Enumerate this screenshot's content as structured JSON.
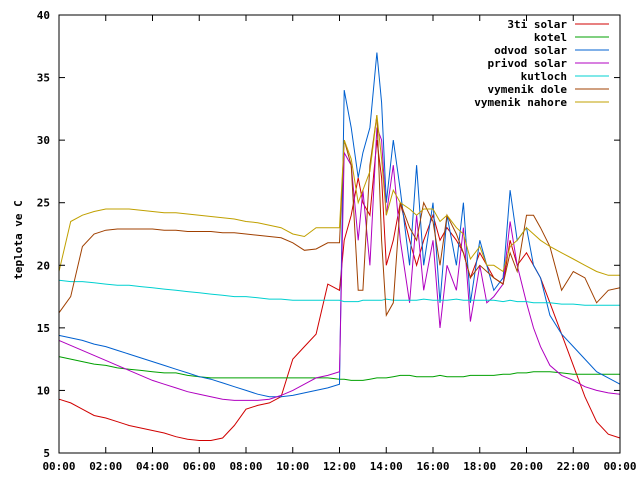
{
  "chart_data": {
    "type": "line",
    "title": "",
    "xlabel": "",
    "ylabel": "teplota ve C",
    "xlim": [
      0,
      24
    ],
    "ylim": [
      5,
      40
    ],
    "x_ticks": [
      "00:00",
      "02:00",
      "04:00",
      "06:00",
      "08:00",
      "10:00",
      "12:00",
      "14:00",
      "16:00",
      "18:00",
      "20:00",
      "22:00",
      "00:00"
    ],
    "y_ticks": [
      5,
      10,
      15,
      20,
      25,
      30,
      35,
      40
    ],
    "grid": false,
    "legend_position": "top-right",
    "x": [
      0,
      0.5,
      1,
      1.5,
      2,
      2.5,
      3,
      3.5,
      4,
      4.5,
      5,
      5.5,
      6,
      6.5,
      7,
      7.5,
      8,
      8.5,
      9,
      9.5,
      10,
      10.5,
      11,
      11.5,
      12,
      12.2,
      12.5,
      12.8,
      13,
      13.3,
      13.6,
      13.8,
      14,
      14.3,
      14.6,
      15,
      15.3,
      15.6,
      16,
      16.3,
      16.6,
      17,
      17.3,
      17.6,
      18,
      18.3,
      18.6,
      19,
      19.3,
      19.6,
      20,
      20.3,
      20.6,
      21,
      21.5,
      22,
      22.5,
      23,
      23.5,
      24
    ],
    "series": [
      {
        "name": "3ti solar",
        "color": "#d00000",
        "values": [
          9.3,
          9.0,
          8.5,
          8.0,
          7.8,
          7.5,
          7.2,
          7.0,
          6.8,
          6.6,
          6.3,
          6.1,
          6.0,
          6.0,
          6.2,
          7.2,
          8.5,
          8.8,
          9.0,
          9.5,
          12.5,
          13.5,
          14.5,
          18.5,
          18.0,
          22.0,
          24.0,
          27.0,
          25.0,
          24.0,
          30.0,
          27.0,
          20.0,
          22.0,
          25.0,
          22.0,
          20.0,
          22.0,
          24.0,
          22.0,
          23.0,
          22.0,
          21.0,
          19.0,
          21.0,
          20.0,
          19.0,
          18.5,
          22.0,
          20.0,
          21.0,
          20.0,
          19.0,
          17.0,
          14.5,
          12.0,
          9.5,
          7.5,
          6.5,
          6.2
        ]
      },
      {
        "name": "kotel",
        "color": "#00a000",
        "values": [
          12.7,
          12.5,
          12.3,
          12.1,
          12.0,
          11.8,
          11.7,
          11.6,
          11.5,
          11.4,
          11.4,
          11.2,
          11.1,
          11.0,
          11.0,
          11.0,
          11.0,
          11.0,
          11.0,
          11.0,
          11.0,
          11.0,
          11.0,
          11.0,
          10.9,
          10.9,
          10.8,
          10.8,
          10.8,
          10.9,
          11.0,
          11.0,
          11.0,
          11.1,
          11.2,
          11.2,
          11.1,
          11.1,
          11.1,
          11.2,
          11.1,
          11.1,
          11.1,
          11.2,
          11.2,
          11.2,
          11.2,
          11.3,
          11.3,
          11.4,
          11.4,
          11.5,
          11.5,
          11.5,
          11.4,
          11.3,
          11.3,
          11.3,
          11.3,
          11.3
        ]
      },
      {
        "name": "odvod solar",
        "color": "#0060d0",
        "values": [
          14.4,
          14.2,
          14.0,
          13.7,
          13.5,
          13.2,
          12.9,
          12.6,
          12.3,
          12.0,
          11.7,
          11.4,
          11.1,
          10.9,
          10.6,
          10.3,
          10.0,
          9.7,
          9.5,
          9.5,
          9.6,
          9.8,
          10.0,
          10.2,
          10.5,
          34.0,
          31.0,
          27.0,
          29.0,
          31.0,
          37.0,
          33.0,
          25.0,
          30.0,
          26.0,
          20.0,
          28.0,
          20.0,
          25.0,
          17.0,
          24.0,
          20.0,
          25.0,
          17.0,
          22.0,
          20.0,
          18.0,
          19.0,
          26.0,
          22.0,
          23.0,
          20.0,
          19.0,
          16.0,
          14.5,
          13.5,
          12.5,
          11.5,
          11.0,
          10.5
        ]
      },
      {
        "name": "privod solar",
        "color": "#b000c0",
        "values": [
          14.0,
          13.6,
          13.2,
          12.8,
          12.4,
          12.0,
          11.6,
          11.2,
          10.8,
          10.5,
          10.2,
          9.9,
          9.7,
          9.5,
          9.3,
          9.2,
          9.2,
          9.2,
          9.3,
          9.6,
          10.0,
          10.5,
          11.0,
          11.2,
          11.5,
          29.0,
          28.0,
          22.0,
          26.0,
          20.0,
          31.0,
          30.0,
          24.0,
          28.0,
          22.0,
          17.0,
          24.0,
          18.0,
          22.0,
          15.0,
          20.0,
          18.0,
          23.0,
          15.5,
          20.0,
          17.0,
          17.5,
          18.5,
          23.5,
          20.0,
          17.0,
          15.0,
          13.5,
          12.0,
          11.2,
          10.8,
          10.3,
          10.0,
          9.8,
          9.7
        ]
      },
      {
        "name": "kutloch",
        "color": "#00d0d0",
        "values": [
          18.8,
          18.7,
          18.7,
          18.6,
          18.5,
          18.4,
          18.4,
          18.3,
          18.2,
          18.1,
          18.0,
          17.9,
          17.8,
          17.7,
          17.6,
          17.5,
          17.5,
          17.4,
          17.3,
          17.3,
          17.2,
          17.2,
          17.2,
          17.2,
          17.2,
          17.1,
          17.1,
          17.1,
          17.2,
          17.2,
          17.2,
          17.2,
          17.3,
          17.2,
          17.2,
          17.2,
          17.2,
          17.3,
          17.2,
          17.2,
          17.2,
          17.3,
          17.2,
          17.2,
          17.2,
          17.2,
          17.2,
          17.1,
          17.2,
          17.1,
          17.1,
          17.0,
          17.0,
          17.0,
          16.9,
          16.9,
          16.8,
          16.8,
          16.8,
          16.8
        ]
      },
      {
        "name": "vymenik dole",
        "color": "#a04000",
        "values": [
          16.2,
          17.5,
          21.5,
          22.5,
          22.8,
          22.9,
          22.9,
          22.9,
          22.9,
          22.8,
          22.8,
          22.7,
          22.7,
          22.7,
          22.6,
          22.6,
          22.5,
          22.4,
          22.3,
          22.2,
          21.8,
          21.2,
          21.3,
          21.8,
          21.8,
          30.0,
          28.0,
          18.0,
          18.0,
          28.0,
          32.0,
          22.0,
          16.0,
          17.0,
          25.0,
          23.0,
          22.0,
          25.0,
          23.5,
          20.0,
          24.0,
          22.5,
          21.0,
          19.0,
          20.0,
          19.5,
          19.0,
          18.5,
          21.0,
          19.5,
          24.0,
          24.0,
          23.0,
          21.5,
          18.0,
          19.5,
          19.0,
          17.0,
          18.0,
          18.2
        ]
      },
      {
        "name": "vymenik nahore",
        "color": "#c0a000",
        "values": [
          19.5,
          23.5,
          24.0,
          24.3,
          24.5,
          24.5,
          24.5,
          24.4,
          24.3,
          24.2,
          24.2,
          24.1,
          24.0,
          23.9,
          23.8,
          23.7,
          23.5,
          23.4,
          23.2,
          23.0,
          22.5,
          22.3,
          23.0,
          23.0,
          23.0,
          30.0,
          28.5,
          25.0,
          26.0,
          27.5,
          32.0,
          28.5,
          24.0,
          26.0,
          25.0,
          24.5,
          24.0,
          24.5,
          24.5,
          23.5,
          24.0,
          23.0,
          22.5,
          20.5,
          21.5,
          20.0,
          20.0,
          19.5,
          21.5,
          22.0,
          23.0,
          22.5,
          22.0,
          21.5,
          21.0,
          20.5,
          20.0,
          19.5,
          19.2,
          19.2
        ]
      }
    ]
  }
}
